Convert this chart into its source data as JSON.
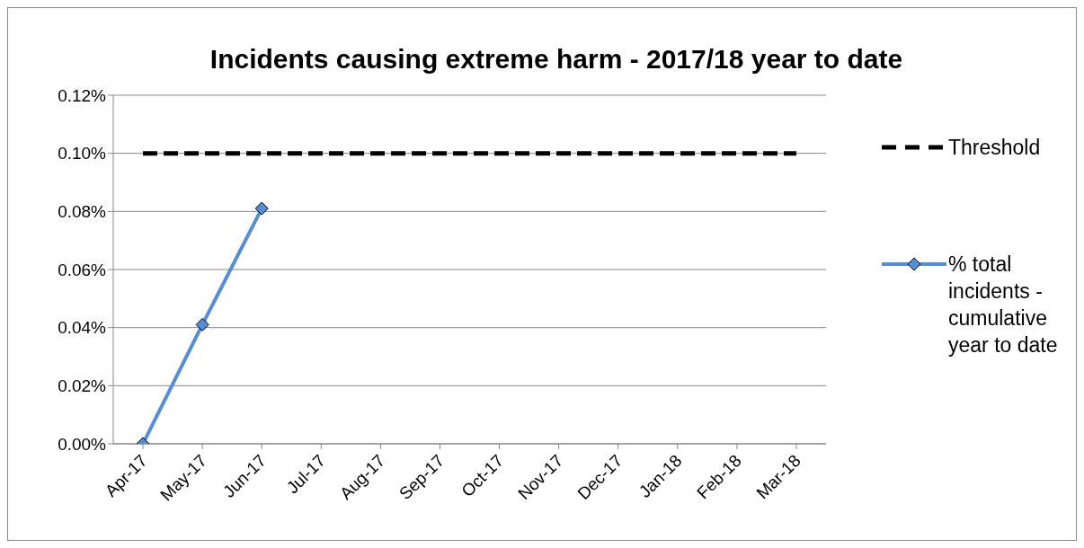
{
  "chart_data": {
    "type": "line",
    "title": "Incidents causing extreme harm - 2017/18 year to date",
    "categories": [
      "Apr-17",
      "May-17",
      "Jun-17",
      "Jul-17",
      "Aug-17",
      "Sep-17",
      "Oct-17",
      "Nov-17",
      "Dec-17",
      "Jan-18",
      "Feb-18",
      "Mar-18"
    ],
    "series": [
      {
        "name": "Threshold",
        "color": "#000000",
        "line_style": "dashed",
        "marker": "none",
        "values": [
          0.1,
          0.1,
          0.1,
          0.1,
          0.1,
          0.1,
          0.1,
          0.1,
          0.1,
          0.1,
          0.1,
          0.1
        ]
      },
      {
        "name": "% total incidents - cumulative year to date",
        "color": "#558ed5",
        "line_style": "solid",
        "marker": "diamond",
        "values": [
          0,
          0.041,
          0.081,
          null,
          null,
          null,
          null,
          null,
          null,
          null,
          null,
          null
        ]
      }
    ],
    "ylim": [
      0,
      0.12
    ],
    "yticks": [
      {
        "value": 0,
        "label": "0.00%"
      },
      {
        "value": 0.02,
        "label": "0.02%"
      },
      {
        "value": 0.04,
        "label": "0.04%"
      },
      {
        "value": 0.06,
        "label": "0.06%"
      },
      {
        "value": 0.08,
        "label": "0.08%"
      },
      {
        "value": 0.1,
        "label": "0.10%"
      },
      {
        "value": 0.12,
        "label": "0.12%"
      }
    ],
    "grid": "y",
    "legend": "right"
  }
}
